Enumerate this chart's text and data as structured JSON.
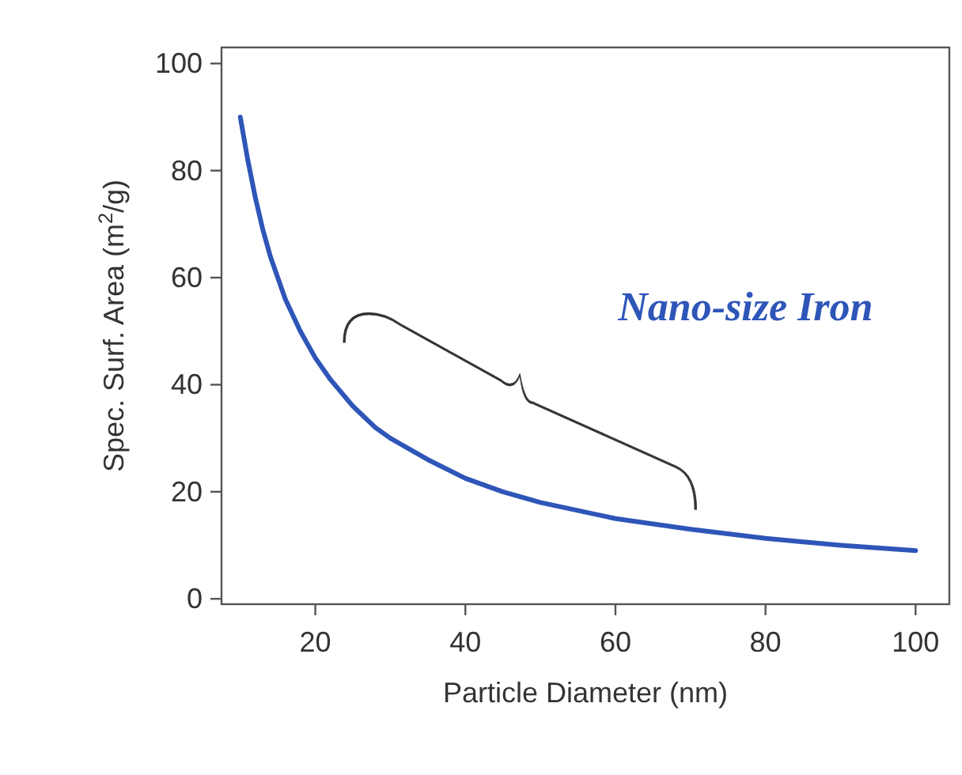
{
  "chart_data": {
    "type": "line",
    "xlabel": "Particle Diameter (nm)",
    "ylabel": "Spec. Surf. Area (m$^{2}$/g)",
    "x": [
      10,
      11,
      12,
      13,
      14,
      16,
      18,
      20,
      22,
      25,
      28,
      30,
      35,
      40,
      45,
      50,
      60,
      70,
      80,
      90,
      100
    ],
    "series": [
      {
        "color": "#2e55b8",
        "values": [
          90,
          82,
          75,
          69,
          64,
          56,
          50,
          45,
          41,
          36,
          32,
          30,
          26,
          22.5,
          20,
          18,
          15,
          13,
          11.3,
          10,
          9
        ]
      }
    ],
    "xlim": [
      7.5,
      104.5
    ],
    "ylim": [
      -1,
      103
    ],
    "xticks": [
      20,
      40,
      60,
      80,
      100
    ],
    "yticks": [
      0,
      20,
      40,
      60,
      80,
      100
    ],
    "grid": false,
    "marker": "none",
    "line_style": "solid",
    "annotations": [
      "Nano-size Iron"
    ]
  }
}
